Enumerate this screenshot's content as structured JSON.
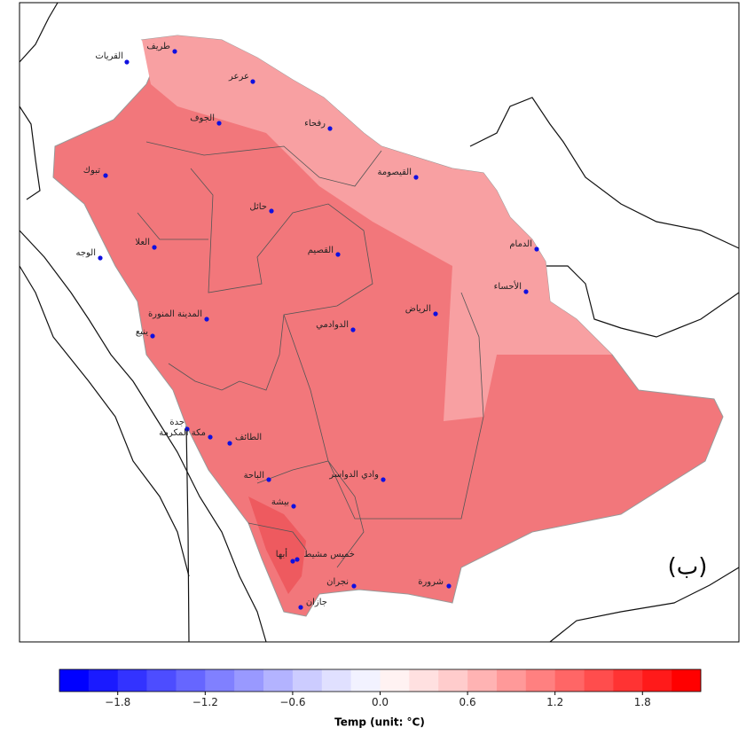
{
  "panel_label": "(ب)",
  "cities": [
    "القريات",
    "طريف",
    "عرعر",
    "الجوف",
    "رفحاء",
    "القيصومة",
    "تبوك",
    "حائل",
    "الدمام",
    "العلا",
    "القصيم",
    "الوجه",
    "الأحساء",
    "الرياض",
    "المدينة المنورة",
    "الدوادمي",
    "ينبع",
    "جدة",
    "مكة المكرمة",
    "الطائف",
    "الباحة",
    "وادي الدواسر",
    "بيشة",
    "خميس مشيط",
    "أبها",
    "نجران",
    "شرورة",
    "جازان"
  ],
  "colorbar": {
    "label": "Temp (unit: °C)",
    "bounds": [
      -2.2,
      -2.0,
      -1.8,
      -1.6,
      -1.4,
      -1.2,
      -1.0,
      -0.8,
      -0.6,
      -0.4,
      -0.2,
      0.0,
      0.2,
      0.4,
      0.6,
      0.8,
      1.0,
      1.2,
      1.4,
      1.6,
      1.8,
      2.0,
      2.2
    ],
    "colors": [
      "#0000ff",
      "#1a1aff",
      "#3333ff",
      "#4d4dff",
      "#6666ff",
      "#8080ff",
      "#9999ff",
      "#b3b3ff",
      "#ccccff",
      "#e0e0ff",
      "#f2f2ff",
      "#fff2f2",
      "#ffe0e0",
      "#ffcccc",
      "#ffb3b3",
      "#ff9999",
      "#ff8080",
      "#ff6666",
      "#ff4d4d",
      "#ff3333",
      "#ff1a1a",
      "#ff0000"
    ],
    "ticks": [
      {
        "value": -1.8,
        "label": "−1.8"
      },
      {
        "value": -1.2,
        "label": "−1.2"
      },
      {
        "value": -0.6,
        "label": "−0.6"
      },
      {
        "value": 0.0,
        "label": "0.0"
      },
      0.6,
      1.2,
      1.8
    ]
  }
}
